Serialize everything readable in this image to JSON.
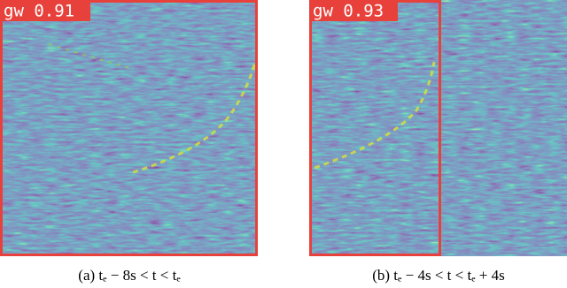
{
  "panels": [
    {
      "detection_label": "gw 0.91",
      "caption": "(a) tₑ − 8s < t < tₑ"
    },
    {
      "detection_label": "gw 0.93",
      "caption": "(b) tₑ − 4s < t < tₑ + 4s"
    }
  ]
}
